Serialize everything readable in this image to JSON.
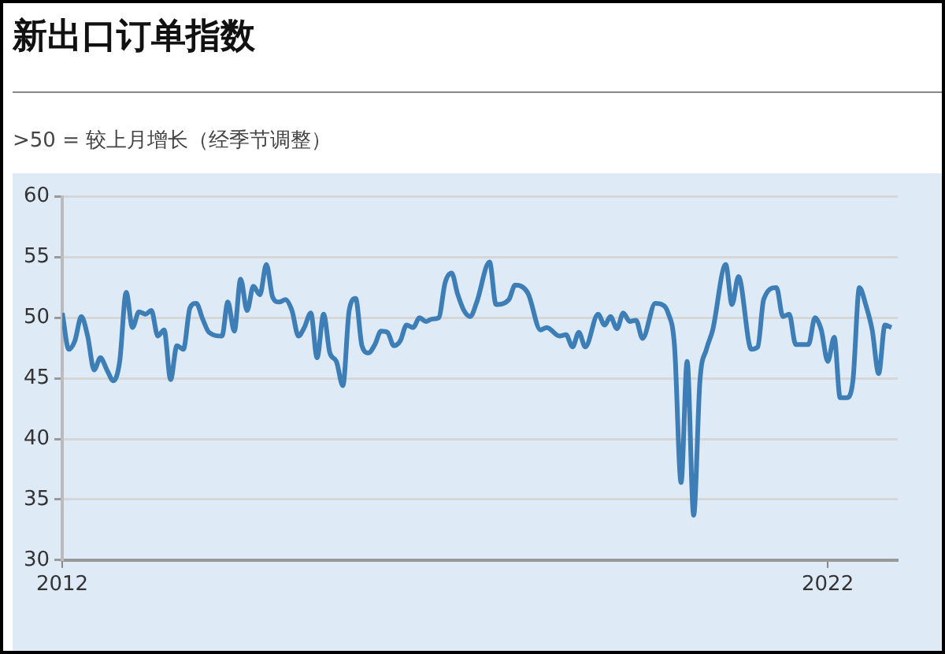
{
  "chart_data": {
    "type": "line",
    "title": "新出口订单指数",
    "subtitle": ">50 = 较上月增长（经季节调整）",
    "x": [
      "2012-01",
      "2012-02",
      "2012-03",
      "2012-04",
      "2012-05",
      "2012-06",
      "2012-07",
      "2012-08",
      "2012-09",
      "2012-10",
      "2012-11",
      "2012-12",
      "2013-01",
      "2013-02",
      "2013-03",
      "2013-04",
      "2013-05",
      "2013-06",
      "2013-07",
      "2013-08",
      "2013-09",
      "2013-10",
      "2013-11",
      "2013-12",
      "2014-02",
      "2014-03",
      "2014-04",
      "2014-05",
      "2014-06",
      "2014-07",
      "2014-08",
      "2014-09",
      "2014-10",
      "2014-11",
      "2014-12",
      "2015-01",
      "2015-02",
      "2015-03",
      "2015-04",
      "2015-05",
      "2015-06",
      "2015-07",
      "2015-08",
      "2015-09",
      "2015-10",
      "2015-11",
      "2015-12",
      "2016-01",
      "2016-02",
      "2016-03",
      "2016-04",
      "2016-05",
      "2016-06",
      "2016-07",
      "2016-08",
      "2016-09",
      "2016-10",
      "2016-11",
      "2016-12",
      "2017-01",
      "2017-02",
      "2017-03",
      "2017-04",
      "2017-05",
      "2017-06",
      "2017-08",
      "2017-09",
      "2017-11",
      "2017-12",
      "2018-02",
      "2018-04",
      "2018-05",
      "2018-07",
      "2018-08",
      "2018-09",
      "2018-10",
      "2018-11",
      "2019-01",
      "2019-02",
      "2019-03",
      "2019-04",
      "2019-05",
      "2019-06",
      "2019-07",
      "2019-08",
      "2019-10",
      "2019-11",
      "2019-12",
      "2020-01",
      "2020-02",
      "2020-03",
      "2020-04",
      "2020-05",
      "2020-06",
      "2020-07",
      "2020-09",
      "2020-10",
      "2020-11",
      "2021-01",
      "2021-02",
      "2021-03",
      "2021-05",
      "2021-06",
      "2021-07",
      "2021-08",
      "2021-10",
      "2021-11",
      "2021-12",
      "2022-01",
      "2022-02",
      "2022-03",
      "2022-04",
      "2022-05",
      "2022-06",
      "2022-07",
      "2022-08",
      "2022-09",
      "2022-10",
      "2022-11"
    ],
    "values": [
      50.4,
      47.4,
      48.1,
      50.1,
      48.5,
      45.7,
      46.7,
      45.7,
      44.8,
      46.4,
      52.1,
      49.2,
      50.5,
      50.3,
      50.6,
      48.5,
      49.0,
      44.9,
      47.7,
      47.4,
      50.8,
      51.2,
      49.9,
      48.8,
      48.5,
      51.3,
      48.9,
      53.2,
      50.6,
      52.6,
      51.9,
      54.4,
      51.7,
      51.3,
      51.5,
      50.6,
      48.5,
      49.2,
      50.4,
      46.7,
      50.3,
      47.1,
      46.4,
      44.4,
      50.6,
      51.6,
      47.7,
      47.1,
      47.8,
      48.9,
      48.8,
      47.7,
      48.1,
      49.4,
      49.2,
      50.0,
      49.7,
      49.9,
      50.0,
      52.9,
      53.7,
      52.0,
      50.6,
      50.1,
      51.3,
      54.6,
      51.1,
      51.5,
      52.7,
      52.0,
      49.0,
      49.2,
      48.5,
      48.6,
      47.6,
      48.8,
      47.6,
      50.3,
      49.4,
      50.1,
      49.1,
      50.4,
      49.7,
      49.8,
      48.3,
      51.2,
      51.1,
      50.4,
      47.6,
      36.4,
      46.4,
      33.7,
      44.8,
      47.4,
      49.0,
      54.4,
      51.1,
      53.4,
      47.4,
      47.6,
      51.5,
      52.5,
      50.1,
      50.3,
      47.8,
      47.8,
      50.0,
      49.0,
      46.4,
      48.4,
      43.4,
      43.4,
      44.8,
      52.5,
      51.1,
      49.0,
      45.4,
      49.4,
      49.2
    ],
    "color": "#3d7eb7",
    "marker": "none",
    "grid": "y",
    "xlim": [
      "2012-01",
      "2022-12"
    ],
    "xticks": [
      {
        "value": "2012-01",
        "label": "2012"
      },
      {
        "value": "2022-01",
        "label": "2022"
      }
    ],
    "ylim": [
      30,
      60
    ],
    "yticks": [
      30,
      35,
      40,
      45,
      50,
      55,
      60
    ]
  }
}
